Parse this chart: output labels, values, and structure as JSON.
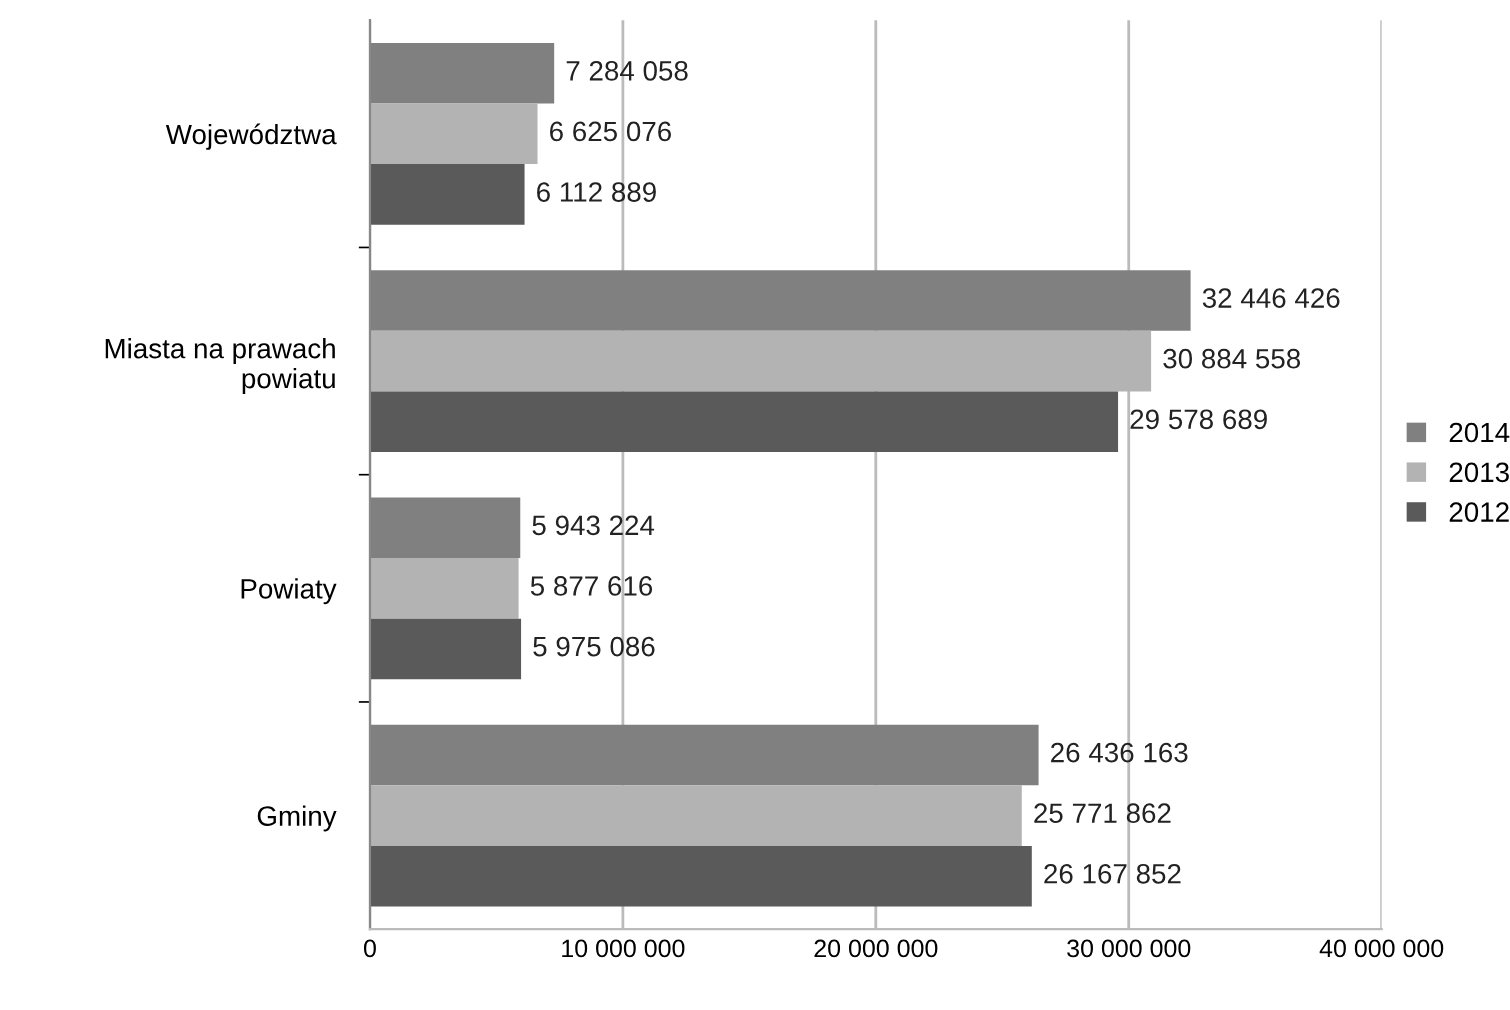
{
  "chart_data": {
    "type": "bar",
    "orientation": "horizontal",
    "categories": [
      "Województwa",
      "Miasta na prawach\npowiatu",
      "Powiaty",
      "Gminy"
    ],
    "series": [
      {
        "name": "2014",
        "color": "#808080",
        "values": [
          7284058,
          32446426,
          5943224,
          26436163
        ],
        "value_labels": [
          "7 284 058",
          "32 446 426",
          "5 943 224",
          "26 436 163"
        ]
      },
      {
        "name": "2013",
        "color": "#b3b3b3",
        "values": [
          6625076,
          30884558,
          5877616,
          25771862
        ],
        "value_labels": [
          "6 625 076",
          "30 884 558",
          "5 877 616",
          "25 771 862"
        ]
      },
      {
        "name": "2012",
        "color": "#5a5a5a",
        "values": [
          6112889,
          29578689,
          5975086,
          26167852
        ],
        "value_labels": [
          "6 112 889",
          "29 578 689",
          "5 975 086",
          "26 167 852"
        ]
      }
    ],
    "xlim": [
      0,
      40000000
    ],
    "xticks": [
      0,
      {
        "value": 10000000,
        "label": "10 000 000"
      },
      {
        "value": 20000000,
        "label": "20 000 000"
      },
      {
        "value": 30000000,
        "label": "30 000 000"
      },
      {
        "value": 40000000,
        "label": "40 000 000"
      }
    ],
    "grid": "x",
    "legend": "right"
  }
}
